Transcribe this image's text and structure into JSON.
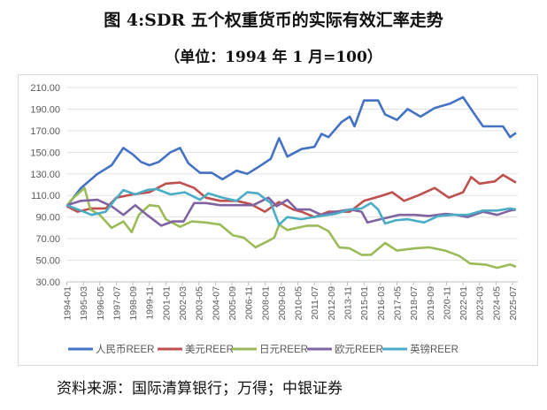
{
  "title": "图 4:SDR 五个权重货币的实际有效汇率走势",
  "subtitle": "（单位：1994 年 1 月=100）",
  "source": "资料来源：国际清算银行；万得；中银证券",
  "chart_data": {
    "type": "line",
    "title": "图 4:SDR 五个权重货币的实际有效汇率走势",
    "subtitle": "（单位：1994 年 1 月=100）",
    "ylim": [
      30,
      210
    ],
    "yticks": [
      "30.00",
      "50.00",
      "70.00",
      "90.00",
      "110.00",
      "130.00",
      "150.00",
      "170.00",
      "190.00",
      "210.00"
    ],
    "xticks": [
      "1994-01",
      "1995-03",
      "1996-05",
      "1997-07",
      "1998-09",
      "1999-11",
      "2001-01",
      "2002-03",
      "2003-05",
      "2004-07",
      "2005-09",
      "2006-11",
      "2008-01",
      "2009-03",
      "2010-05",
      "2011-07",
      "2012-09",
      "2013-11",
      "2015-01",
      "2016-03",
      "2017-05",
      "2018-07",
      "2019-09",
      "2020-11",
      "2022-01",
      "2023-03",
      "2024-05",
      "2025-07"
    ],
    "grid": true,
    "legend": "bottom",
    "series": [
      {
        "name": "人民币REER",
        "color": "#4472C4",
        "points": [
          [
            "1994-01",
            100
          ],
          [
            "1995-01",
            117
          ],
          [
            "1996-03",
            130
          ],
          [
            "1997-03",
            138
          ],
          [
            "1998-01",
            154
          ],
          [
            "1998-09",
            148
          ],
          [
            "1999-04",
            141
          ],
          [
            "1999-11",
            138
          ],
          [
            "2000-07",
            141
          ],
          [
            "2001-05",
            150
          ],
          [
            "2002-01",
            154
          ],
          [
            "2002-08",
            140
          ],
          [
            "2003-06",
            131
          ],
          [
            "2004-04",
            131
          ],
          [
            "2005-01",
            125
          ],
          [
            "2006-01",
            133
          ],
          [
            "2006-10",
            130
          ],
          [
            "2007-07",
            136
          ],
          [
            "2008-06",
            144
          ],
          [
            "2009-01",
            163
          ],
          [
            "2009-08",
            146
          ],
          [
            "2010-08",
            153
          ],
          [
            "2011-07",
            155
          ],
          [
            "2012-01",
            167
          ],
          [
            "2012-07",
            164
          ],
          [
            "2013-06",
            178
          ],
          [
            "2014-01",
            183
          ],
          [
            "2014-05",
            174
          ],
          [
            "2015-01",
            198
          ],
          [
            "2016-01",
            198
          ],
          [
            "2016-07",
            185
          ],
          [
            "2017-05",
            180
          ],
          [
            "2018-02",
            190
          ],
          [
            "2019-01",
            183
          ],
          [
            "2020-01",
            191
          ],
          [
            "2021-02",
            195
          ],
          [
            "2022-01",
            201
          ],
          [
            "2022-11",
            185
          ],
          [
            "2023-06",
            174
          ],
          [
            "2024-06",
            174
          ],
          [
            "2024-11",
            174
          ],
          [
            "2025-05",
            164
          ],
          [
            "2025-10",
            168
          ]
        ]
      },
      {
        "name": "美元REER",
        "color": "#C0504D",
        "points": [
          [
            "1994-01",
            100
          ],
          [
            "1994-10",
            95
          ],
          [
            "1995-10",
            98
          ],
          [
            "1996-10",
            98
          ],
          [
            "1997-07",
            108
          ],
          [
            "1998-09",
            111
          ],
          [
            "1999-11",
            113
          ],
          [
            "2001-01",
            121
          ],
          [
            "2002-01",
            122
          ],
          [
            "2003-01",
            117
          ],
          [
            "2003-11",
            108
          ],
          [
            "2004-11",
            105
          ],
          [
            "2006-01",
            105
          ],
          [
            "2007-01",
            102
          ],
          [
            "2008-01",
            95
          ],
          [
            "2009-01",
            104
          ],
          [
            "2010-01",
            97
          ],
          [
            "2010-08",
            95
          ],
          [
            "2011-07",
            90
          ],
          [
            "2012-07",
            95
          ],
          [
            "2014-01",
            95
          ],
          [
            "2015-01",
            105
          ],
          [
            "2016-02",
            109
          ],
          [
            "2017-01",
            113
          ],
          [
            "2017-11",
            105
          ],
          [
            "2018-11",
            110
          ],
          [
            "2020-01",
            117
          ],
          [
            "2021-01",
            108
          ],
          [
            "2022-01",
            113
          ],
          [
            "2022-08",
            127
          ],
          [
            "2023-03",
            121
          ],
          [
            "2024-04",
            123
          ],
          [
            "2024-11",
            129
          ],
          [
            "2025-10",
            122
          ]
        ]
      },
      {
        "name": "日元REER",
        "color": "#9BBB59",
        "points": [
          [
            "1994-01",
            100
          ],
          [
            "1994-04",
            105
          ],
          [
            "1995-04",
            117
          ],
          [
            "1995-09",
            97
          ],
          [
            "1996-05",
            92
          ],
          [
            "1997-03",
            80
          ],
          [
            "1998-01",
            86
          ],
          [
            "1998-08",
            76
          ],
          [
            "1999-02",
            92
          ],
          [
            "1999-11",
            101
          ],
          [
            "2000-07",
            100
          ],
          [
            "2001-01",
            88
          ],
          [
            "2002-01",
            81
          ],
          [
            "2002-11",
            86
          ],
          [
            "2003-11",
            85
          ],
          [
            "2004-11",
            83
          ],
          [
            "2005-10",
            73
          ],
          [
            "2006-07",
            71
          ],
          [
            "2007-05",
            62
          ],
          [
            "2008-04",
            68
          ],
          [
            "2008-09",
            71
          ],
          [
            "2009-01",
            83
          ],
          [
            "2009-08",
            78
          ],
          [
            "2011-01",
            82
          ],
          [
            "2011-10",
            82
          ],
          [
            "2012-07",
            77
          ],
          [
            "2013-04",
            62
          ],
          [
            "2014-01",
            61
          ],
          [
            "2014-11",
            55
          ],
          [
            "2015-07",
            55
          ],
          [
            "2016-07",
            66
          ],
          [
            "2017-05",
            59
          ],
          [
            "2018-08",
            61
          ],
          [
            "2019-08",
            62
          ],
          [
            "2020-10",
            59
          ],
          [
            "2021-10",
            54
          ],
          [
            "2022-07",
            47
          ],
          [
            "2023-08",
            46
          ],
          [
            "2024-06",
            43
          ],
          [
            "2025-05",
            46
          ],
          [
            "2025-10",
            44
          ]
        ]
      },
      {
        "name": "欧元REER",
        "color": "#8064A2",
        "points": [
          [
            "1994-01",
            101
          ],
          [
            "1995-01",
            105
          ],
          [
            "1996-03",
            106
          ],
          [
            "1997-03",
            100
          ],
          [
            "1998-01",
            92
          ],
          [
            "1998-11",
            101
          ],
          [
            "1999-09",
            92
          ],
          [
            "2000-09",
            82
          ],
          [
            "2001-07",
            86
          ],
          [
            "2002-04",
            86
          ],
          [
            "2003-01",
            103
          ],
          [
            "2003-11",
            103
          ],
          [
            "2004-11",
            101
          ],
          [
            "2006-01",
            101
          ],
          [
            "2007-03",
            101
          ],
          [
            "2008-04",
            108
          ],
          [
            "2008-11",
            100
          ],
          [
            "2009-08",
            106
          ],
          [
            "2010-04",
            97
          ],
          [
            "2011-03",
            97
          ],
          [
            "2012-01",
            92
          ],
          [
            "2013-01",
            95
          ],
          [
            "2014-01",
            97
          ],
          [
            "2014-11",
            95
          ],
          [
            "2015-04",
            85
          ],
          [
            "2016-03",
            88
          ],
          [
            "2017-07",
            92
          ],
          [
            "2018-08",
            92
          ],
          [
            "2019-08",
            91
          ],
          [
            "2020-10",
            93
          ],
          [
            "2021-07",
            92
          ],
          [
            "2022-05",
            90
          ],
          [
            "2023-06",
            95
          ],
          [
            "2024-06",
            92
          ],
          [
            "2025-05",
            96
          ],
          [
            "2025-10",
            97
          ]
        ]
      },
      {
        "name": "英镑REER",
        "color": "#4BACC6",
        "points": [
          [
            "1994-01",
            101
          ],
          [
            "1995-01",
            96
          ],
          [
            "1995-10",
            92
          ],
          [
            "1996-10",
            95
          ],
          [
            "1997-05",
            105
          ],
          [
            "1998-01",
            115
          ],
          [
            "1998-11",
            111
          ],
          [
            "1999-09",
            115
          ],
          [
            "2000-05",
            116
          ],
          [
            "2001-05",
            111
          ],
          [
            "2002-05",
            113
          ],
          [
            "2003-06",
            106
          ],
          [
            "2004-01",
            112
          ],
          [
            "2005-01",
            108
          ],
          [
            "2006-01",
            105
          ],
          [
            "2006-10",
            113
          ],
          [
            "2007-07",
            112
          ],
          [
            "2008-06",
            103
          ],
          [
            "2009-01",
            83
          ],
          [
            "2009-08",
            90
          ],
          [
            "2010-08",
            88
          ],
          [
            "2011-01",
            89
          ],
          [
            "2012-01",
            91
          ],
          [
            "2013-01",
            93
          ],
          [
            "2014-01",
            97
          ],
          [
            "2014-11",
            98
          ],
          [
            "2015-07",
            103
          ],
          [
            "2016-01",
            97
          ],
          [
            "2016-07",
            84
          ],
          [
            "2017-04",
            87
          ],
          [
            "2018-02",
            88
          ],
          [
            "2019-04",
            85
          ],
          [
            "2020-04",
            91
          ],
          [
            "2021-05",
            92
          ],
          [
            "2022-05",
            92
          ],
          [
            "2023-06",
            96
          ],
          [
            "2024-06",
            96
          ],
          [
            "2025-05",
            98
          ],
          [
            "2025-10",
            97
          ]
        ]
      }
    ]
  }
}
